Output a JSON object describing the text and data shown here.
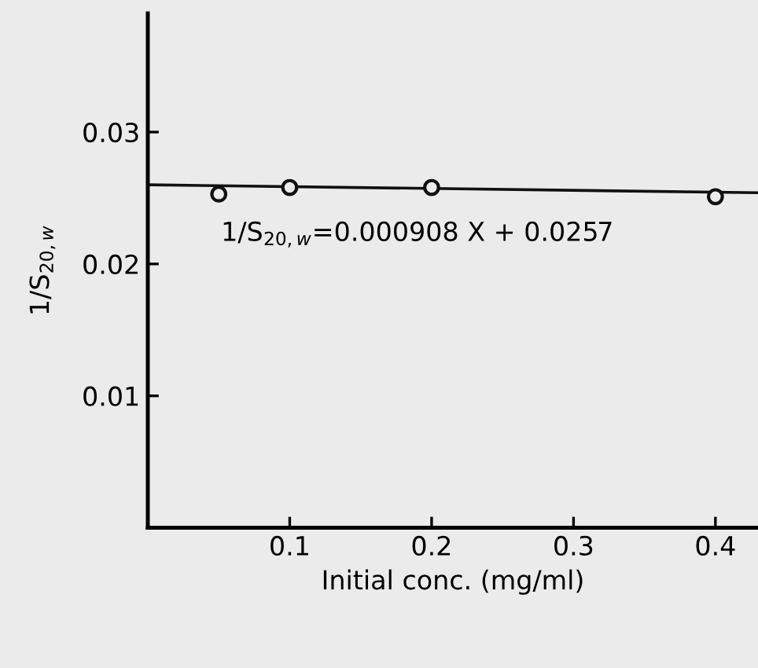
{
  "chart_data": {
    "type": "scatter",
    "xlabel": "Initial conc. (mg/ml)",
    "ylabel": "1/S$_{20,w}$",
    "xlim": [
      0,
      0.43
    ],
    "ylim": [
      0,
      0.039
    ],
    "xticks": [
      {
        "value": 0.1,
        "label": "0.1"
      },
      {
        "value": 0.2,
        "label": "0.2"
      },
      {
        "value": 0.3,
        "label": "0.3"
      },
      {
        "value": 0.4,
        "label": "0.4"
      }
    ],
    "yticks": [
      {
        "value": 0.01,
        "label": "0.01"
      },
      {
        "value": 0.02,
        "label": "0.02"
      },
      {
        "value": 0.03,
        "label": "0.03"
      }
    ],
    "grid": false,
    "series": [
      {
        "marker": "circle",
        "color": "#111111",
        "x": [
          0.05,
          0.1,
          0.2,
          0.4
        ],
        "values": [
          0.0253,
          0.0258,
          0.0258,
          0.0251
        ]
      },
      {
        "type": "line",
        "marker": "none",
        "color": "#111111",
        "x": [
          0,
          0.43
        ],
        "values": [
          0.026,
          0.0254
        ]
      }
    ],
    "annotations": [
      "1/S$_{20,w}$=0.000908 X + 0.0257"
    ]
  }
}
